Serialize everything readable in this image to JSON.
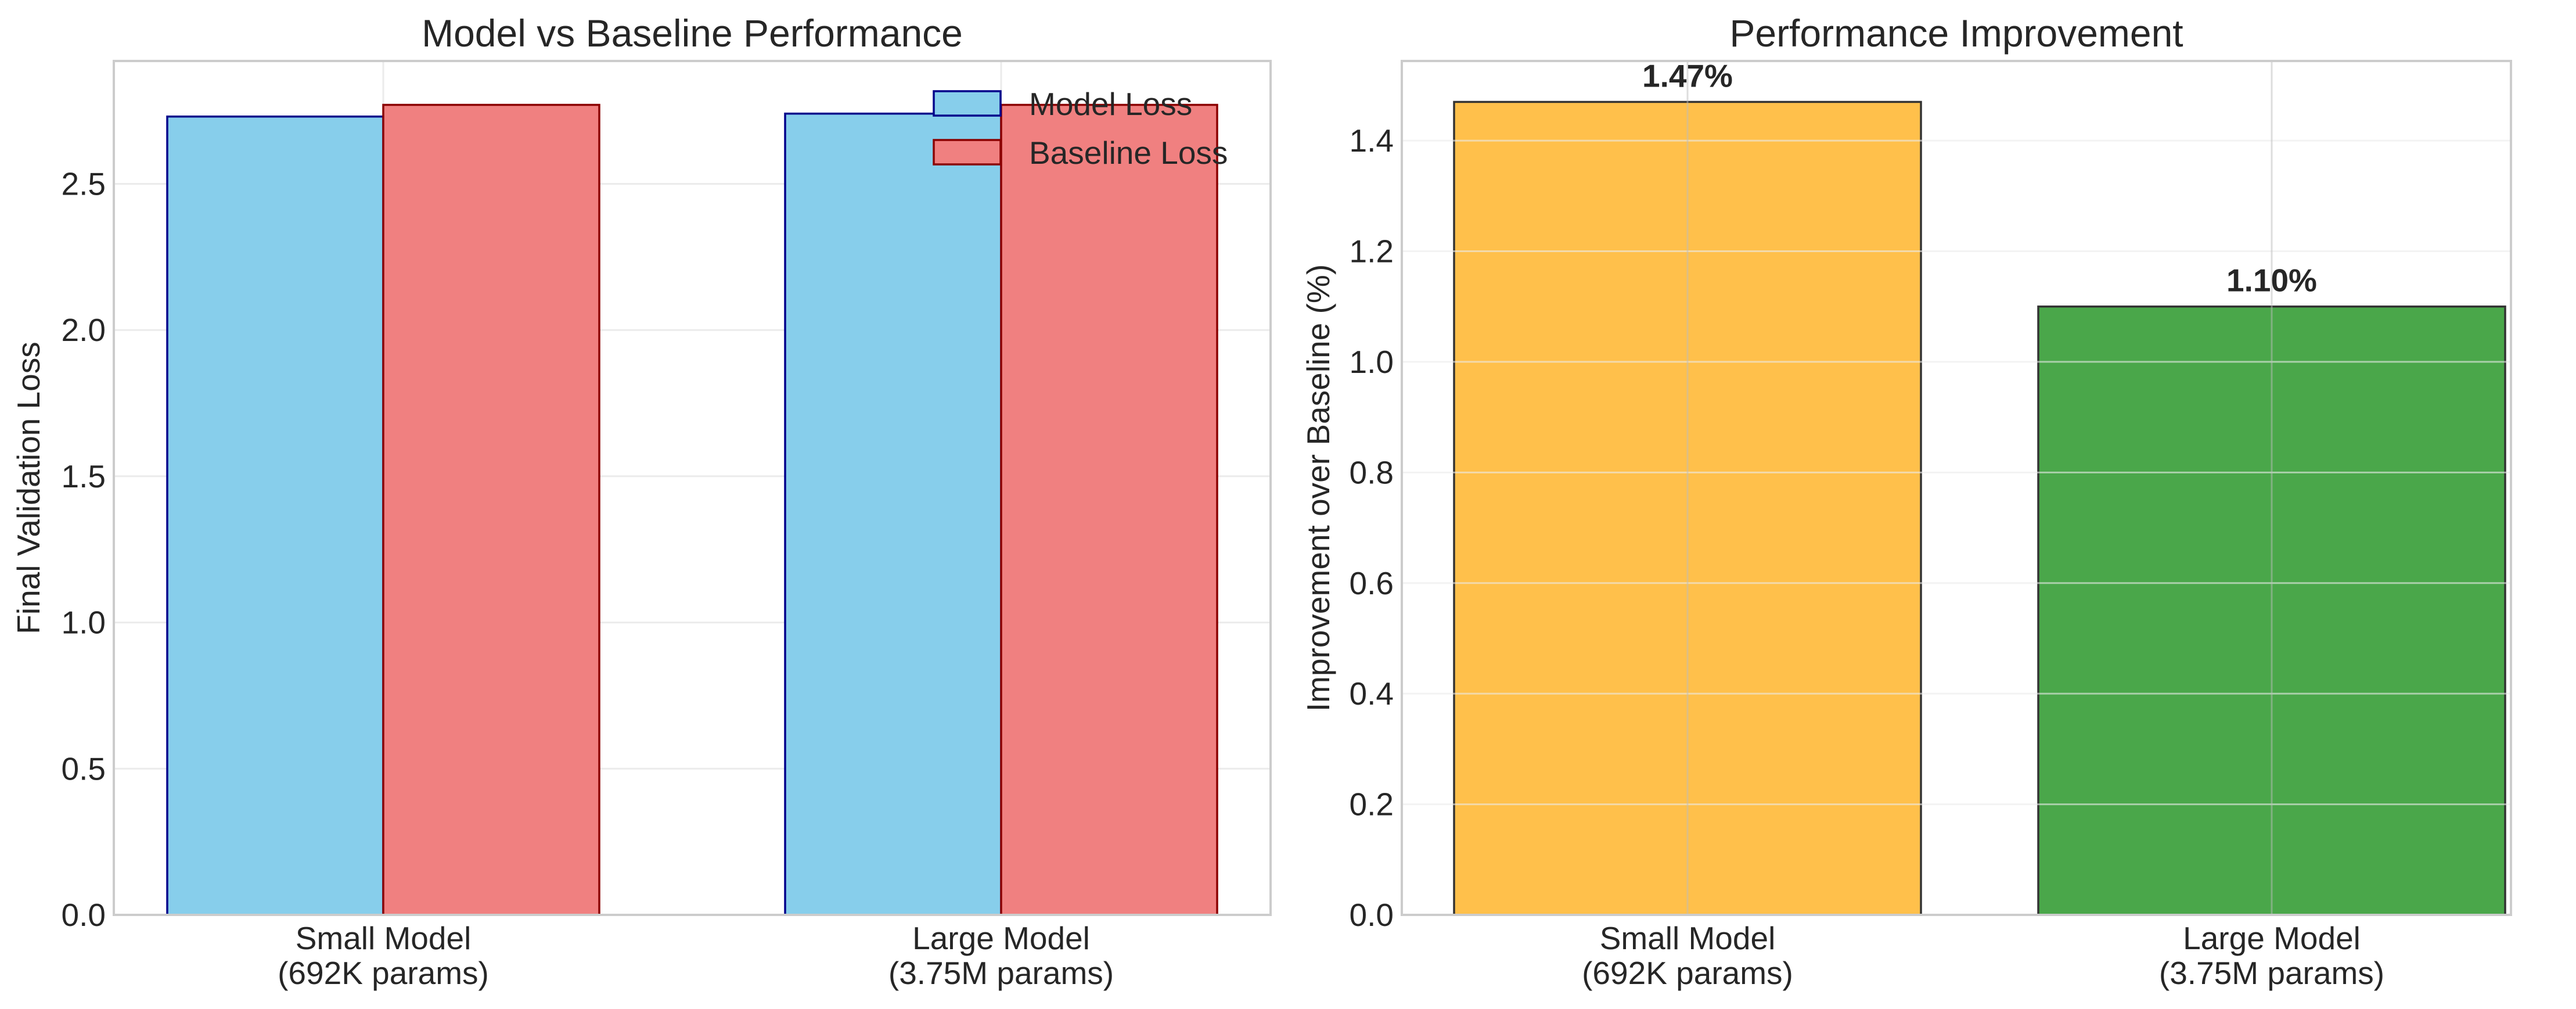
{
  "figure": {
    "colors": {
      "model_fill": "#87CEEB",
      "model_edge": "#00008B",
      "baseline_fill": "#F08080",
      "baseline_edge": "#8B0000",
      "improvement_small": "#FFB732",
      "improvement_large": "#319B31",
      "improvement_edge": "#333333",
      "grid": "#EBEBEB",
      "axes_edge": "#CCCCCC",
      "text": "#262626"
    }
  },
  "chart_data": [
    {
      "type": "bar",
      "title": "Model vs Baseline Performance",
      "xlabel": "",
      "ylabel": "Final Validation Loss",
      "categories": [
        "Small Model\n(692K params)",
        "Large Model\n(3.75M params)"
      ],
      "series": [
        {
          "name": "Model Loss",
          "values": [
            2.73,
            2.74
          ]
        },
        {
          "name": "Baseline Loss",
          "values": [
            2.77,
            2.77
          ]
        }
      ],
      "ylim": [
        0,
        2.92
      ],
      "yticks": [
        "0.0",
        "0.5",
        "1.0",
        "1.5",
        "2.0",
        "2.5"
      ],
      "grid": true,
      "legend": "top-right"
    },
    {
      "type": "bar",
      "title": "Performance Improvement",
      "xlabel": "",
      "ylabel": "Improvement over Baseline (%)",
      "categories": [
        "Small Model\n(692K params)",
        "Large Model\n(3.75M params)"
      ],
      "values": [
        1.47,
        1.1
      ],
      "data_labels": [
        "1.47%",
        "1.10%"
      ],
      "ylim": [
        0,
        1.544
      ],
      "yticks": [
        "0.0",
        "0.2",
        "0.4",
        "0.6",
        "0.8",
        "1.0",
        "1.2",
        "1.4"
      ],
      "grid": true
    }
  ]
}
